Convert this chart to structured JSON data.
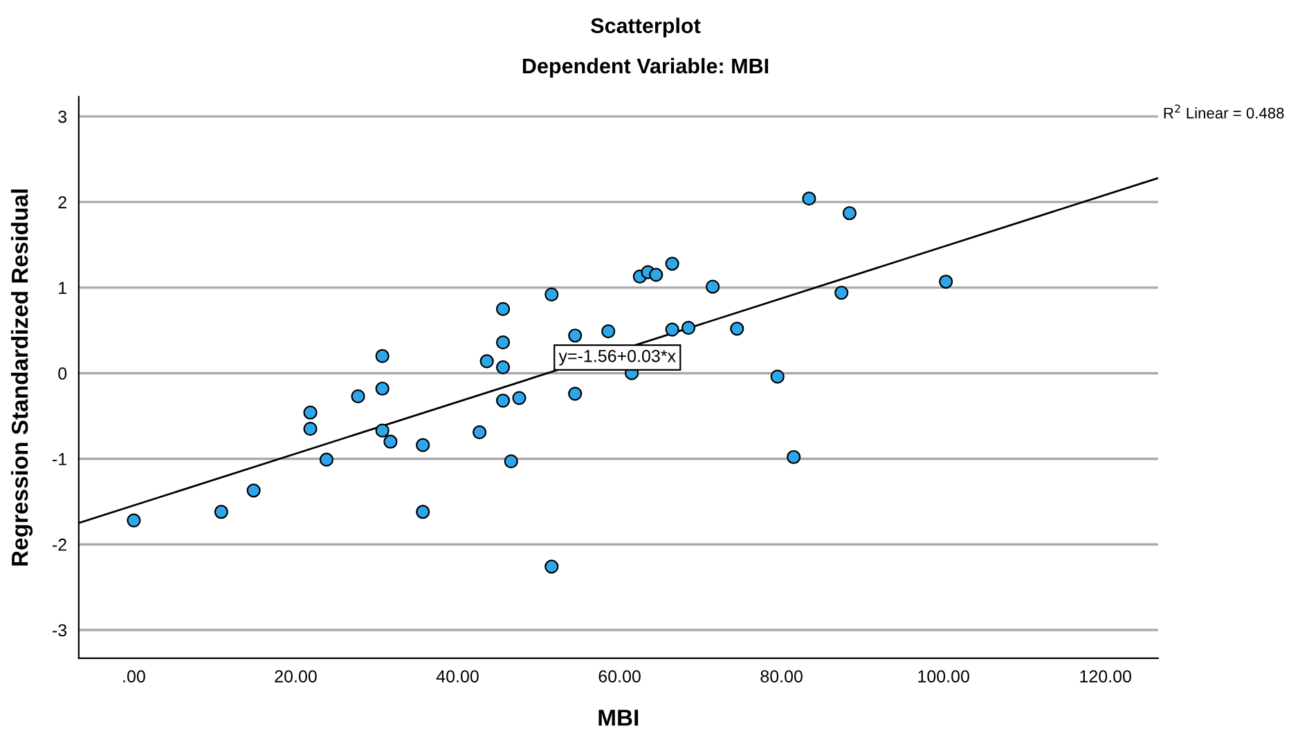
{
  "chart_data": {
    "type": "scatter",
    "title": "Scatterplot",
    "subtitle": "Dependent Variable: MBI",
    "xlabel": "MBI",
    "ylabel": "Regression Standardized Residual",
    "xlim": [
      -6.8,
      126.5
    ],
    "ylim": [
      -3.33,
      3.23
    ],
    "xticks": [
      {
        "value": 0,
        "label": ".00"
      },
      {
        "value": 20,
        "label": "20.00"
      },
      {
        "value": 40,
        "label": "40.00"
      },
      {
        "value": 60,
        "label": "60.00"
      },
      {
        "value": 80,
        "label": "80.00"
      },
      {
        "value": 100,
        "label": "100.00"
      },
      {
        "value": 120,
        "label": "120.00"
      }
    ],
    "yticks": [
      -3,
      -2,
      -1,
      0,
      1,
      2,
      3
    ],
    "grid": "y",
    "legend": false,
    "marker": "circle",
    "series": [
      {
        "color": "#2ea6ec",
        "x": [
          0,
          10.8,
          14.8,
          21.8,
          21.8,
          23.8,
          27.7,
          30.7,
          30.7,
          30.7,
          31.7,
          35.7,
          35.7,
          42.7,
          43.6,
          45.6,
          45.6,
          45.6,
          45.6,
          47.6,
          46.6,
          51.6,
          51.6,
          54.5,
          54.5,
          58.6,
          61.5,
          62.5,
          63.5,
          64.5,
          66.5,
          66.5,
          68.5,
          71.5,
          74.5,
          79.5,
          81.5,
          83.4,
          87.4,
          88.4,
          100.3
        ],
        "values": [
          -1.72,
          -1.62,
          -1.37,
          -0.46,
          -0.65,
          -1.01,
          -0.27,
          0.2,
          -0.18,
          -0.67,
          -0.8,
          -0.84,
          -1.62,
          -0.69,
          0.14,
          0.75,
          0.36,
          0.07,
          -0.32,
          -0.29,
          -1.03,
          0.92,
          -2.26,
          0.44,
          -0.24,
          0.49,
          0,
          1.13,
          1.18,
          1.15,
          1.28,
          0.51,
          0.53,
          1.01,
          0.52,
          -0.04,
          -0.98,
          2.04,
          0.94,
          1.87,
          1.07
        ]
      },
      {
        "type": "line",
        "color": "#000000",
        "marker": "none",
        "x": [
          -6.8,
          126.5
        ],
        "values": [
          -1.75,
          2.28
        ]
      }
    ],
    "annotations": [
      {
        "text": "y=-1.56+0.03*x",
        "x": 52,
        "y": 0
      },
      "R$^{2}$ Linear = 0.488"
    ]
  }
}
